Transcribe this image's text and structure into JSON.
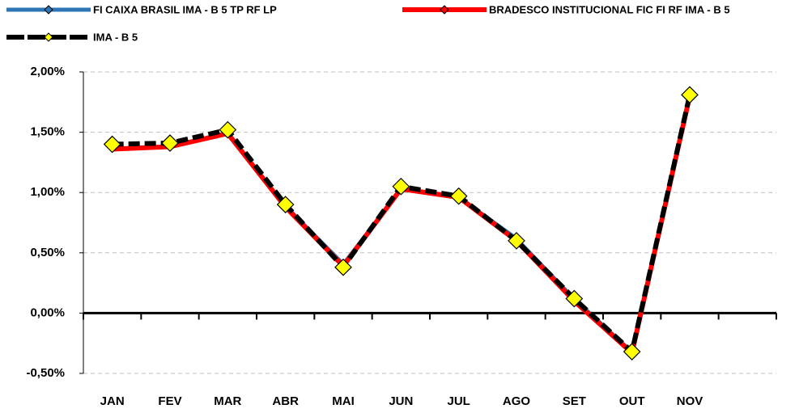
{
  "chart_data": {
    "type": "line",
    "categories": [
      "JAN",
      "FEV",
      "MAR",
      "ABR",
      "MAI",
      "JUN",
      "JUL",
      "AGO",
      "SET",
      "OUT",
      "NOV",
      null
    ],
    "series": [
      {
        "name": "FI CAIXA BRASIL IMA - B 5 TP RF LP",
        "color": "#2e75b6",
        "values": [
          1.37,
          1.39,
          1.5,
          0.9,
          0.42,
          1.04,
          0.97,
          0.63,
          0.13,
          -0.31,
          1.8,
          null
        ]
      },
      {
        "name": "BRADESCO INSTITUCIONAL FIC FI RF IMA - B 5",
        "color": "#ff0000",
        "values": [
          1.36,
          1.38,
          1.49,
          0.88,
          0.39,
          1.03,
          0.96,
          0.6,
          0.1,
          -0.33,
          1.8,
          null
        ]
      },
      {
        "name": "IMA - B 5",
        "color": "#000000",
        "marker_color": "#ffff00",
        "values": [
          1.4,
          1.41,
          1.52,
          0.9,
          0.38,
          1.05,
          0.97,
          0.6,
          0.12,
          -0.32,
          1.81,
          null
        ]
      }
    ],
    "ylim": [
      -0.5,
      2.0
    ],
    "yticks": [
      {
        "value": -0.5,
        "label": "-0,50%"
      },
      {
        "value": 0,
        "label": "0,00%"
      },
      {
        "value": 0.5,
        "label": "0,50%"
      },
      {
        "value": 1.0,
        "label": "1,00%"
      },
      {
        "value": 1.5,
        "label": "1,50%"
      },
      {
        "value": 2.0,
        "label": "2,00%"
      }
    ],
    "grid": true
  }
}
